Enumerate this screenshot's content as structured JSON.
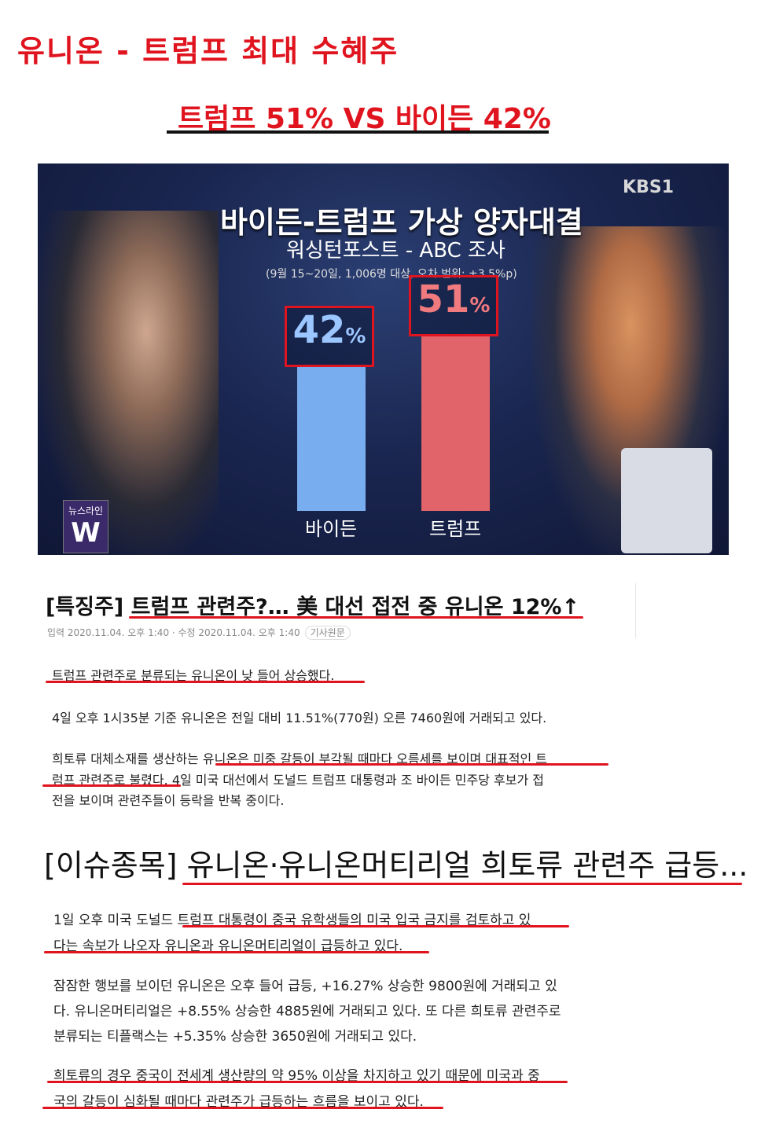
{
  "header": {
    "title": "유니온 - 트럼프 최대 수혜주",
    "subtitle": "트럼프 51% VS 바이든 42%"
  },
  "image": {
    "broadcaster": "KBS1",
    "title": "바이든-트럼프 가상 양자대결",
    "subtitle": "워싱턴포스트 - ABC 조사",
    "note": "(9월 15~20일, 1,006명 대상, 오차 범위: ±3.5%p)",
    "logo": "뉴스라인",
    "bars": [
      {
        "name": "바이든",
        "value": 42,
        "label": "42",
        "unit": "%",
        "color": "#78aef0"
      },
      {
        "name": "트럼프",
        "value": 51,
        "label": "51",
        "unit": "%",
        "color": "#e06469"
      }
    ]
  },
  "article1": {
    "tag": "[특징주]",
    "headline": "트럼프 관련주?… 美 대선 접전 중 유니온 12%↑",
    "meta": "입력 2020.11.04. 오후 1:40 · 수정 2020.11.04. 오후 1:40",
    "source_button": "기사원문",
    "p1": "트럼프 관련주로 분류되는 유니온이 낮 들어 상승했다.",
    "p2": "4일 오후 1시35분 기준 유니온은 전일 대비 11.51%(770원) 오른 7460원에 거래되고 있다.",
    "p3": [
      "희토류 대체소재를 생산하는 유니온은 미중 갈등이 부각될 때마다 오름세를 보이며 대표적인 트",
      "럼프 관련주로 불렸다. 4일 미국 대선에서 도널드 트럼프 대통령과 조 바이든 민주당 후보가 접",
      "전을 보이며 관련주들이 등락을 반복 중이다."
    ]
  },
  "article2": {
    "tag": "[이슈종목]",
    "headline": "유니온·유니온머티리얼 희토류 관련주 급등...",
    "p1": [
      "1일 오후 미국 도널드 트럼프 대통령이 중국 유학생들의 미국 입국 금지를 검토하고 있",
      "다는 속보가 나오자 유니온과 유니온머티리얼이 급등하고 있다."
    ],
    "p2": [
      "잠잠한 행보를 보이던 유니온은 오후 들어 급등, +16.27% 상승한 9800원에 거래되고 있",
      "다. 유니온머티리얼은 +8.55% 상승한 4885원에 거래되고 있다. 또 다른 희토류 관련주로",
      "분류되는 티플랙스는 +5.35% 상승한 3650원에 거래되고 있다."
    ],
    "p3": [
      "희토류의 경우 중국이 전세계 생산량의 약 95% 이상을 차지하고 있기 때문에 미국과 중",
      "국의 갈등이 심화될 때마다 관련주가 급등하는 흐름을 보이고 있다."
    ]
  }
}
